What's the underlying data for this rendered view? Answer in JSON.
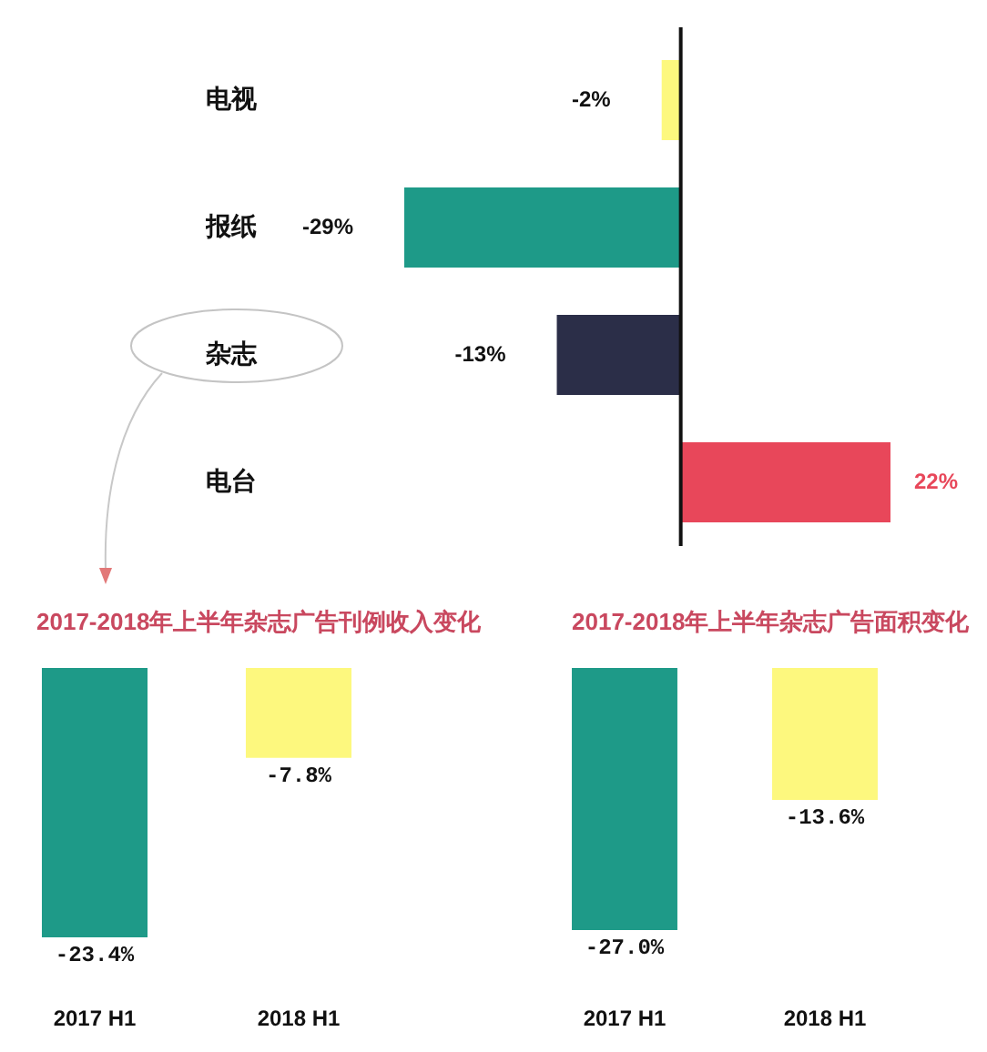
{
  "chart_data": [
    {
      "type": "bar",
      "orientation": "horizontal",
      "categories": [
        "电视",
        "报纸",
        "杂志",
        "电台"
      ],
      "values": [
        -2,
        -29,
        -13,
        22
      ],
      "colors": [
        "#fdf87e",
        "#1e9a88",
        "#2b2e48",
        "#e8475a"
      ],
      "value_labels": [
        "-2%",
        "-29%",
        "-13%",
        "22%"
      ],
      "tick_labels": "y"
    },
    {
      "type": "bar",
      "title": "2017-2018年上半年杂志广告刊例收入变化",
      "categories": [
        "2017 H1",
        "2018 H1"
      ],
      "values": [
        -23.4,
        -7.8
      ],
      "colors": [
        "#1e9a88",
        "#fdf87e"
      ],
      "value_labels": [
        "-23.4%",
        "-7.8%"
      ],
      "tick_labels": "x"
    },
    {
      "type": "bar",
      "title": "2017-2018年上半年杂志广告面积变化",
      "categories": [
        "2017 H1",
        "2018 H1"
      ],
      "values": [
        -27.0,
        -13.6
      ],
      "colors": [
        "#1e9a88",
        "#fdf87e"
      ],
      "value_labels": [
        "-27.0%",
        "-13.6%"
      ],
      "tick_labels": "x"
    }
  ]
}
